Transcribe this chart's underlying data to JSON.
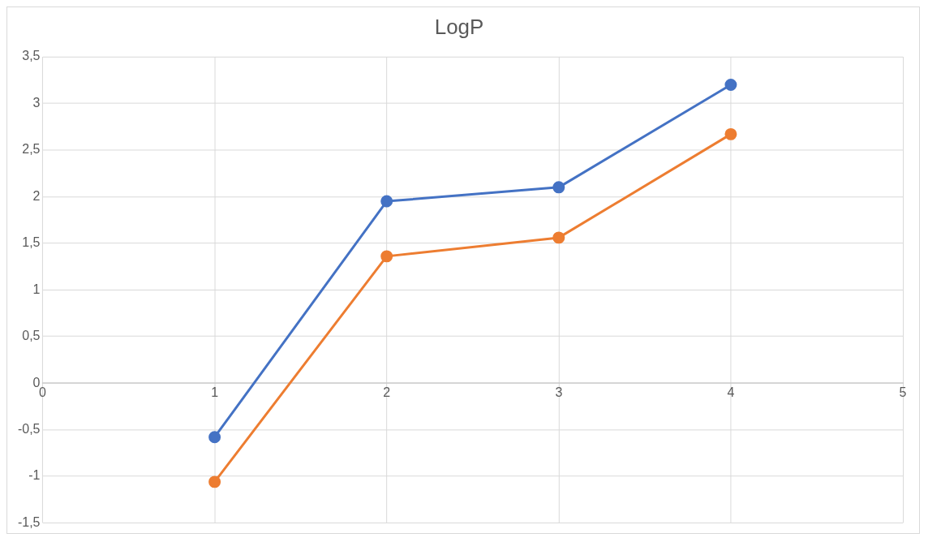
{
  "chart_data": {
    "type": "line",
    "title": "LogP",
    "x": [
      1,
      2,
      3,
      4
    ],
    "series": [
      {
        "color": "#4472c4",
        "values": [
          -0.58,
          1.95,
          2.1,
          3.2
        ]
      },
      {
        "color": "#ed7d31",
        "values": [
          -1.06,
          1.36,
          1.56,
          2.67
        ]
      }
    ],
    "xlim": [
      0,
      5
    ],
    "xticks": [
      0,
      1,
      2,
      3,
      4,
      5
    ],
    "ylim": [
      -1.5,
      3.5
    ],
    "yticks": [
      {
        "value": -1.5,
        "label": "-1,5"
      },
      -1,
      {
        "value": -0.5,
        "label": "-0,5"
      },
      0,
      {
        "value": 0.5,
        "label": "0,5"
      },
      1,
      {
        "value": 1.5,
        "label": "1,5"
      },
      2,
      {
        "value": 2.5,
        "label": "2,5"
      },
      3,
      {
        "value": 3.5,
        "label": "3,5"
      }
    ],
    "grid": true,
    "legend": false,
    "marker": "circle",
    "line_style": "solid"
  }
}
